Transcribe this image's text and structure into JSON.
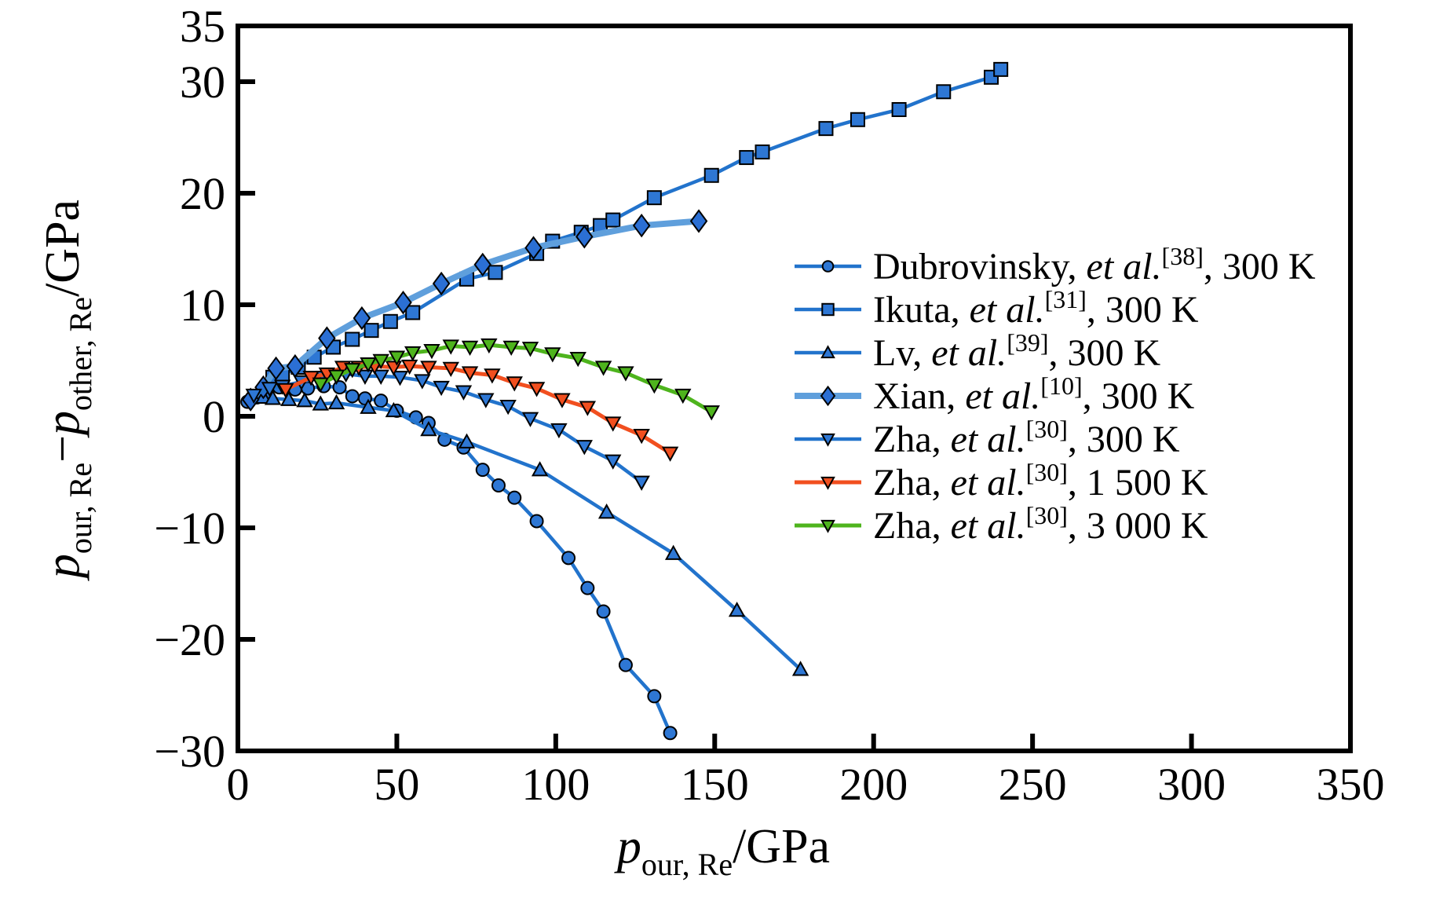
{
  "figure": {
    "background": "#ffffff",
    "frame_color": "#000000"
  },
  "chart_data": {
    "type": "line",
    "title": "",
    "xlabel_parts": [
      {
        "t": "p",
        "style": "italic"
      },
      {
        "t": "our, Re",
        "style": "sub"
      },
      {
        "t": "/GPa",
        "style": "normal"
      }
    ],
    "ylabel_parts": [
      {
        "t": "p",
        "style": "italic"
      },
      {
        "t": "our, Re",
        "style": "sub"
      },
      {
        "t": "−",
        "style": "normal"
      },
      {
        "t": "p",
        "style": "italic"
      },
      {
        "t": "other, Re",
        "style": "sub"
      },
      {
        "t": "/GPa",
        "style": "normal"
      }
    ],
    "xlim": [
      0,
      350
    ],
    "ylim": [
      -30,
      35
    ],
    "x_tick_labels": [
      "0",
      "50",
      "100",
      "150",
      "200",
      "250",
      "300",
      "350"
    ],
    "x_tick_label_values": [
      0,
      50,
      100,
      150,
      200,
      250,
      300,
      350
    ],
    "x_tick_marks": [
      50,
      100,
      150,
      200,
      250,
      300
    ],
    "y_tick_labels": [
      "35",
      "30",
      "20",
      "10",
      "0",
      "−10",
      "−20",
      "−30"
    ],
    "y_tick_label_values": [
      35,
      30,
      20,
      10,
      0,
      -10,
      -20,
      -30
    ],
    "y_tick_marks": [
      30,
      20,
      10,
      0,
      -10,
      -20
    ],
    "grid": false,
    "legend_position": "inside-right",
    "series": [
      {
        "id": "dubrovinsky-300k",
        "label_parts": {
          "before": "Dubrovinsky, ",
          "etal": "et al.",
          "ref": "[38]",
          "after": ", 300 K"
        },
        "color": "#2273cc",
        "marker": "circle",
        "marker_fill": "#2e77d4",
        "line_width": 4.5,
        "marker_size": 8,
        "x": [
          3,
          6,
          9,
          13,
          18,
          22,
          27,
          32,
          36,
          40,
          45,
          50,
          56,
          60,
          65,
          71,
          77,
          82,
          87,
          94,
          104,
          110,
          115,
          122,
          131,
          136
        ],
        "y": [
          1.3,
          1.7,
          2.0,
          2.6,
          2.4,
          2.5,
          2.7,
          2.6,
          1.8,
          1.6,
          1.4,
          0.5,
          -0.1,
          -0.6,
          -2.1,
          -2.8,
          -4.8,
          -6.2,
          -7.3,
          -9.4,
          -12.7,
          -15.4,
          -17.5,
          -22.3,
          -25.1,
          -28.4
        ]
      },
      {
        "id": "ikuta-300k",
        "label_parts": {
          "before": "Ikuta, ",
          "etal": "et al.",
          "ref": "[31]",
          "after": ", 300 K"
        },
        "color": "#2273cc",
        "marker": "square",
        "marker_fill": "#2e77d4",
        "line_width": 4.5,
        "marker_size": 8.5,
        "x": [
          11,
          14,
          19,
          24,
          30,
          36,
          42,
          48,
          55,
          72,
          81,
          94,
          99,
          108,
          114,
          118,
          131,
          149,
          160,
          165,
          185,
          195,
          208,
          222,
          237,
          240
        ],
        "y": [
          3.5,
          3.7,
          4.4,
          5.3,
          6.2,
          6.9,
          7.7,
          8.5,
          9.3,
          12.3,
          12.9,
          14.6,
          15.7,
          16.5,
          17.1,
          17.6,
          19.6,
          21.6,
          23.2,
          23.7,
          25.8,
          26.6,
          27.5,
          29.1,
          30.4,
          31.1
        ]
      },
      {
        "id": "lv-300k",
        "label_parts": {
          "before": "Lv, ",
          "etal": "et al.",
          "ref": "[39]",
          "after": ", 300 K"
        },
        "color": "#2273cc",
        "marker": "triangle-up",
        "marker_fill": "#2e77d4",
        "line_width": 4.5,
        "marker_size": 9,
        "x": [
          8,
          11,
          16,
          21,
          26,
          31,
          41,
          49,
          60,
          72,
          95,
          116,
          137,
          157,
          177
        ],
        "y": [
          1.7,
          1.6,
          1.5,
          1.4,
          1.1,
          1.2,
          0.8,
          0.5,
          -1.2,
          -2.3,
          -4.8,
          -8.6,
          -12.3,
          -17.4,
          -22.7
        ]
      },
      {
        "id": "xian-300k",
        "label_parts": {
          "before": "Xian, ",
          "etal": "et al.",
          "ref": "[10]",
          "after": ", 300 K"
        },
        "color": "#5f9fdc",
        "marker": "diamond",
        "marker_fill": "#2b6fd4",
        "line_width": 8,
        "marker_size": 10,
        "x": [
          4,
          8,
          12,
          18,
          28,
          39,
          52,
          64,
          77,
          93,
          109,
          127,
          145
        ],
        "y": [
          1.5,
          2.6,
          4.3,
          4.5,
          7.0,
          8.8,
          10.2,
          11.9,
          13.6,
          15.1,
          16.1,
          17.1,
          17.5
        ]
      },
      {
        "id": "zha-300k",
        "label_parts": {
          "before": "Zha, ",
          "etal": "et al.",
          "ref": "[30]",
          "after": ", 300 K"
        },
        "color": "#2273cc",
        "marker": "triangle-down",
        "marker_fill": "#2e77d4",
        "line_width": 4.5,
        "marker_size": 9,
        "x": [
          5,
          10,
          14,
          20,
          27,
          34,
          40,
          45,
          51,
          58,
          64,
          71,
          78,
          85,
          92,
          101,
          109,
          118,
          127
        ],
        "y": [
          1.9,
          2.5,
          2.7,
          3.1,
          3.5,
          3.8,
          3.6,
          3.6,
          3.5,
          3.2,
          2.6,
          2.2,
          1.5,
          0.9,
          -0.2,
          -1.2,
          -2.7,
          -4.0,
          -5.9
        ]
      },
      {
        "id": "zha-1500k",
        "label_parts": {
          "before": "Zha, ",
          "etal": "et al.",
          "ref": "[30]",
          "after": ", 1 500 K"
        },
        "color": "#f14f1f",
        "marker": "triangle-down",
        "marker_fill": "#f14f1f",
        "line_width": 5,
        "marker_size": 9,
        "x": [
          15,
          23,
          28,
          33,
          38,
          43,
          49,
          54,
          60,
          67,
          73,
          80,
          87,
          94,
          102,
          110,
          118,
          127,
          136
        ],
        "y": [
          2.4,
          3.5,
          3.8,
          4.4,
          4.4,
          4.5,
          4.4,
          4.5,
          4.4,
          4.3,
          3.9,
          3.7,
          3.0,
          2.5,
          1.5,
          0.8,
          -0.6,
          -1.7,
          -3.3
        ]
      },
      {
        "id": "zha-3000k",
        "label_parts": {
          "before": "Zha, ",
          "etal": "et al.",
          "ref": "[30]",
          "after": ", 3 000 K"
        },
        "color": "#4eb41d",
        "marker": "triangle-down",
        "marker_fill": "#4eb41d",
        "line_width": 5,
        "marker_size": 9,
        "x": [
          26,
          31,
          36,
          41,
          45,
          50,
          55,
          61,
          67,
          73,
          79,
          86,
          92,
          99,
          107,
          115,
          122,
          131,
          140,
          149
        ],
        "y": [
          2.9,
          3.6,
          4.2,
          4.7,
          5.0,
          5.3,
          5.7,
          5.9,
          6.3,
          6.2,
          6.4,
          6.2,
          6.1,
          5.6,
          5.2,
          4.4,
          3.9,
          2.8,
          1.9,
          0.4
        ]
      }
    ]
  }
}
